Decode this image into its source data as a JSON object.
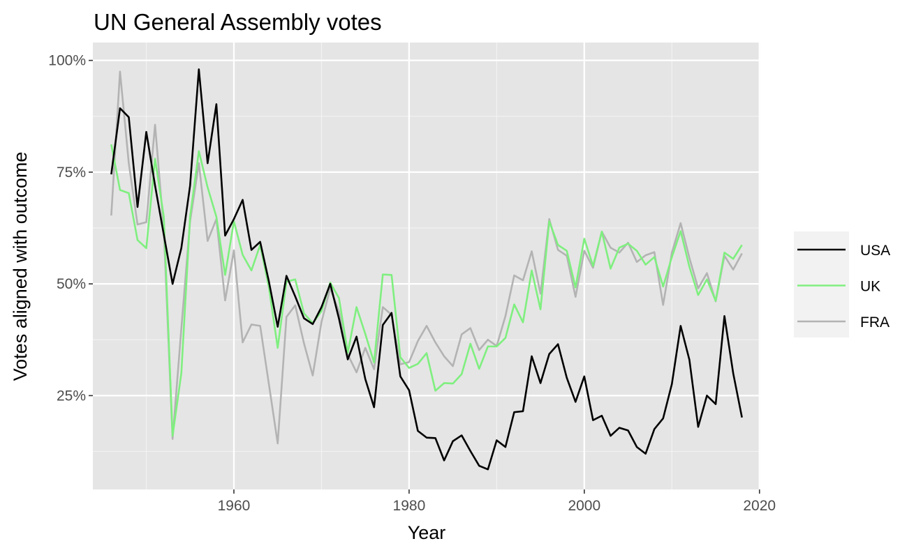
{
  "chart_data": {
    "type": "line",
    "title": "UN General Assembly votes",
    "xlabel": "Year",
    "ylabel": "Votes aligned with outcome",
    "xlim": [
      1943.9,
      2020.1
    ],
    "ylim": [
      0.04,
      1.04
    ],
    "x_ticks": [
      1960,
      1980,
      2000,
      2020
    ],
    "y_ticks": [
      0.25,
      0.5,
      0.75,
      1.0
    ],
    "y_tick_labels": [
      "25%",
      "50%",
      "75%",
      "100%"
    ],
    "grid": true,
    "legend_position": "right",
    "x": [
      1946,
      1947,
      1948,
      1949,
      1950,
      1951,
      1952,
      1953,
      1954,
      1955,
      1956,
      1957,
      1958,
      1959,
      1960,
      1961,
      1962,
      1963,
      1964,
      1965,
      1966,
      1967,
      1968,
      1969,
      1970,
      1971,
      1972,
      1973,
      1974,
      1975,
      1976,
      1977,
      1978,
      1979,
      1980,
      1981,
      1982,
      1983,
      1984,
      1985,
      1986,
      1987,
      1988,
      1989,
      1990,
      1991,
      1992,
      1993,
      1994,
      1995,
      1996,
      1997,
      1998,
      1999,
      2000,
      2001,
      2002,
      2003,
      2004,
      2005,
      2006,
      2007,
      2008,
      2009,
      2010,
      2011,
      2012,
      2013,
      2014,
      2015,
      2016,
      2017,
      2018
    ],
    "series": [
      {
        "name": "USA",
        "color": "#000000",
        "values": [
          0.745,
          0.893,
          0.873,
          0.672,
          0.84,
          0.72,
          0.61,
          0.5,
          0.58,
          0.72,
          0.98,
          0.77,
          0.902,
          0.608,
          0.645,
          0.688,
          0.576,
          0.594,
          0.505,
          0.404,
          0.518,
          0.472,
          0.423,
          0.41,
          0.448,
          0.5,
          0.422,
          0.331,
          0.382,
          0.287,
          0.224,
          0.408,
          0.435,
          0.293,
          0.262,
          0.171,
          0.156,
          0.155,
          0.105,
          0.148,
          0.161,
          0.126,
          0.093,
          0.085,
          0.15,
          0.135,
          0.213,
          0.215,
          0.338,
          0.278,
          0.343,
          0.365,
          0.29,
          0.236,
          0.293,
          0.195,
          0.205,
          0.16,
          0.178,
          0.172,
          0.135,
          0.12,
          0.175,
          0.199,
          0.276,
          0.406,
          0.33,
          0.18,
          0.25,
          0.231,
          0.428,
          0.3,
          0.201
        ]
      },
      {
        "name": "UK",
        "color": "#7fef7f",
        "values": [
          0.812,
          0.71,
          0.703,
          0.598,
          0.58,
          0.78,
          0.65,
          0.16,
          0.3,
          0.65,
          0.797,
          0.716,
          0.65,
          0.52,
          0.64,
          0.565,
          0.53,
          0.587,
          0.492,
          0.357,
          0.505,
          0.51,
          0.434,
          0.412,
          0.439,
          0.503,
          0.468,
          0.346,
          0.448,
          0.388,
          0.324,
          0.521,
          0.52,
          0.336,
          0.312,
          0.321,
          0.345,
          0.261,
          0.278,
          0.277,
          0.298,
          0.366,
          0.31,
          0.36,
          0.36,
          0.379,
          0.454,
          0.414,
          0.53,
          0.443,
          0.64,
          0.587,
          0.574,
          0.492,
          0.601,
          0.54,
          0.617,
          0.534,
          0.581,
          0.59,
          0.574,
          0.543,
          0.56,
          0.494,
          0.56,
          0.618,
          0.538,
          0.475,
          0.51,
          0.462,
          0.57,
          0.556,
          0.587
        ]
      },
      {
        "name": "FRA",
        "color": "#b3b3b3",
        "values": [
          0.653,
          0.975,
          0.77,
          0.633,
          0.638,
          0.856,
          0.62,
          0.153,
          0.4,
          0.64,
          0.77,
          0.596,
          0.645,
          0.463,
          0.575,
          0.369,
          0.409,
          0.406,
          0.275,
          0.143,
          0.426,
          0.452,
          0.367,
          0.295,
          0.415,
          0.49,
          0.438,
          0.342,
          0.302,
          0.357,
          0.309,
          0.448,
          0.431,
          0.32,
          0.325,
          0.372,
          0.406,
          0.369,
          0.338,
          0.316,
          0.387,
          0.401,
          0.352,
          0.375,
          0.361,
          0.428,
          0.519,
          0.508,
          0.573,
          0.478,
          0.645,
          0.576,
          0.563,
          0.471,
          0.574,
          0.536,
          0.617,
          0.581,
          0.57,
          0.592,
          0.549,
          0.564,
          0.571,
          0.453,
          0.57,
          0.636,
          0.558,
          0.49,
          0.524,
          0.461,
          0.563,
          0.532,
          0.568
        ]
      }
    ]
  }
}
